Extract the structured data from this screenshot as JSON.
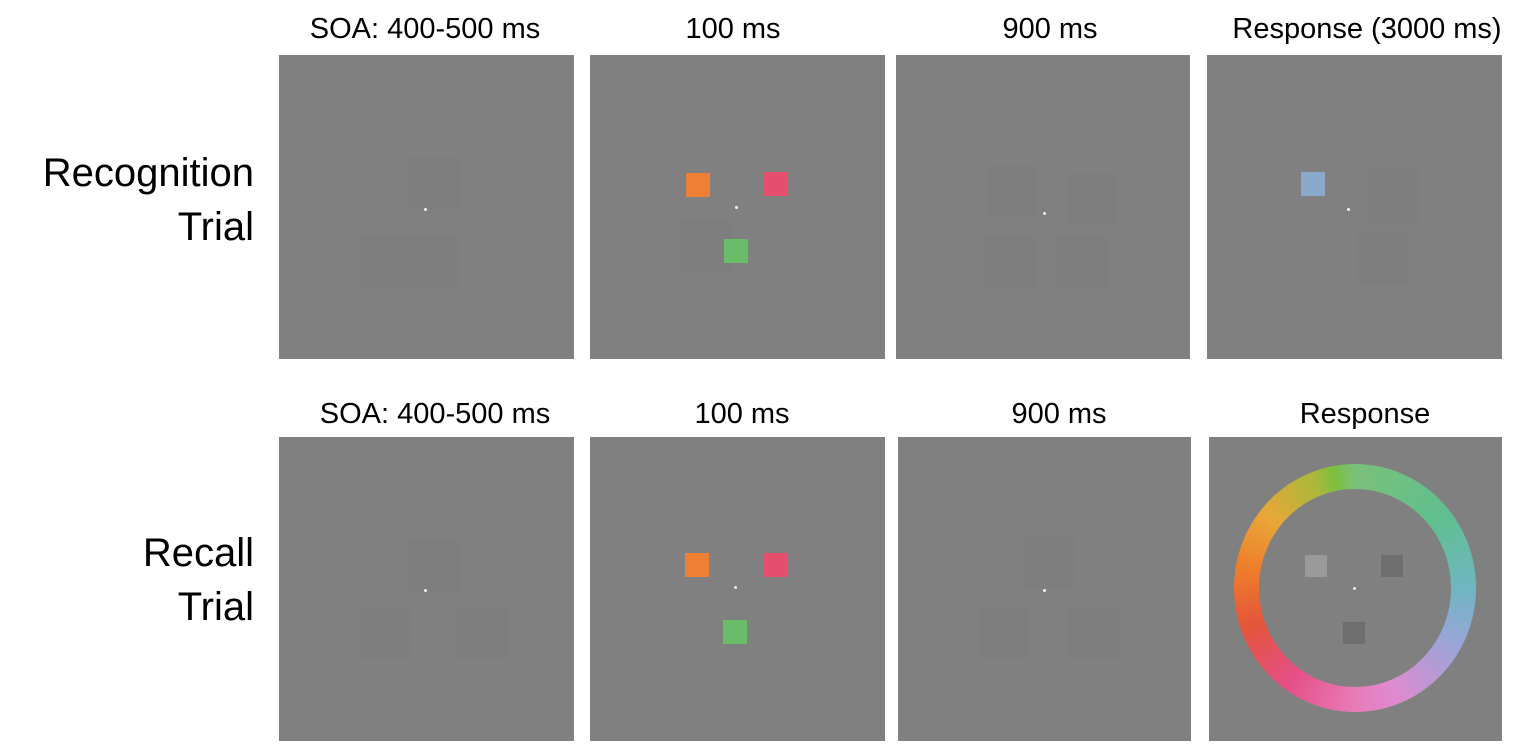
{
  "rows": [
    {
      "label_line1": "Recognition",
      "label_line2": "Trial",
      "titles": [
        "SOA: 400-500 ms",
        "100 ms",
        "900 ms",
        "Response (3000 ms)"
      ]
    },
    {
      "label_line1": "Recall",
      "label_line2": "Trial",
      "titles": [
        "SOA: 400-500 ms",
        "100 ms",
        "900 ms",
        "Response"
      ]
    }
  ],
  "colors": {
    "background": "#808080",
    "orange": "#ef7f33",
    "pink": "#e64e6e",
    "green": "#6bbc68",
    "probe_blue": "#8aa8c8",
    "probe_light": "#9a9a9a",
    "probe_dark": "#6e6e6e"
  }
}
